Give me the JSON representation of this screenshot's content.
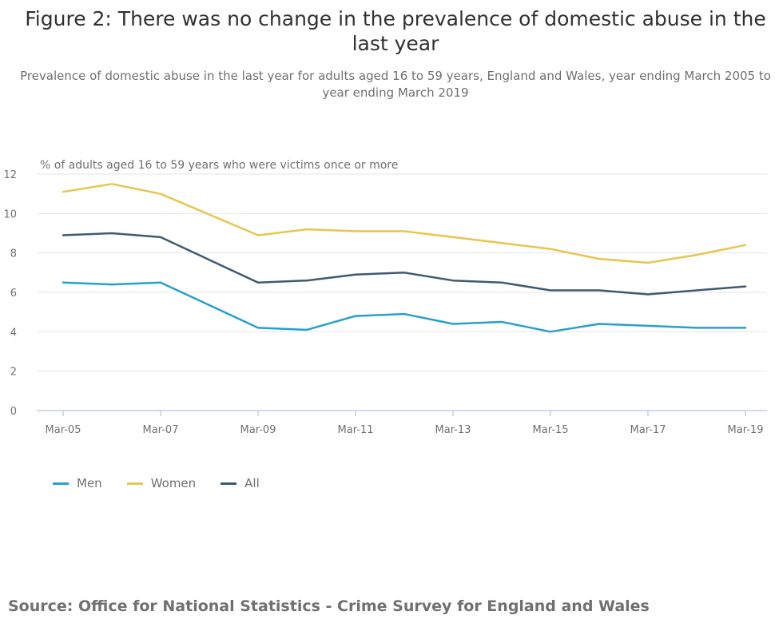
{
  "title": "Figure 2: There was no change in the prevalence of domestic abuse in the last year",
  "subtitle": "Prevalence of domestic abuse in the last year for adults aged 16 to 59 years, England and Wales, year ending March 2005 to year ending March 2019",
  "source": "Source: Office for National Statistics - Crime Survey for England and Wales",
  "chart_data": {
    "type": "line",
    "ylabel": "% of adults aged 16 to 59 years who were victims once or more",
    "xlabel": "",
    "ylim": [
      0,
      12
    ],
    "yticks": [
      0,
      2,
      4,
      6,
      8,
      10,
      12
    ],
    "x": [
      "Mar-05",
      "Mar-06",
      "Mar-07",
      "Mar-08",
      "Mar-09",
      "Mar-10",
      "Mar-11",
      "Mar-12",
      "Mar-13",
      "Mar-14",
      "Mar-15",
      "Mar-16",
      "Mar-17",
      "Mar-18",
      "Mar-19"
    ],
    "xtick_labels": [
      "Mar-05",
      "Mar-07",
      "Mar-09",
      "Mar-11",
      "Mar-13",
      "Mar-15",
      "Mar-17",
      "Mar-19"
    ],
    "grid": "horizontal",
    "legend_position": "bottom-left",
    "series": [
      {
        "name": "Men",
        "color": "#27a0cc",
        "values": [
          6.5,
          6.4,
          6.5,
          null,
          4.2,
          4.1,
          4.8,
          4.9,
          4.4,
          4.5,
          4.0,
          4.4,
          4.3,
          4.2,
          4.2
        ]
      },
      {
        "name": "Women",
        "color": "#e9c54c",
        "values": [
          11.1,
          11.5,
          11.0,
          null,
          8.9,
          9.2,
          9.1,
          9.1,
          8.8,
          8.5,
          8.2,
          7.7,
          7.5,
          7.9,
          8.4
        ]
      },
      {
        "name": "All",
        "color": "#3e5a72",
        "values": [
          8.9,
          9.0,
          8.8,
          null,
          6.5,
          6.6,
          6.9,
          7.0,
          6.6,
          6.5,
          6.1,
          6.1,
          5.9,
          6.1,
          6.3
        ]
      }
    ]
  }
}
